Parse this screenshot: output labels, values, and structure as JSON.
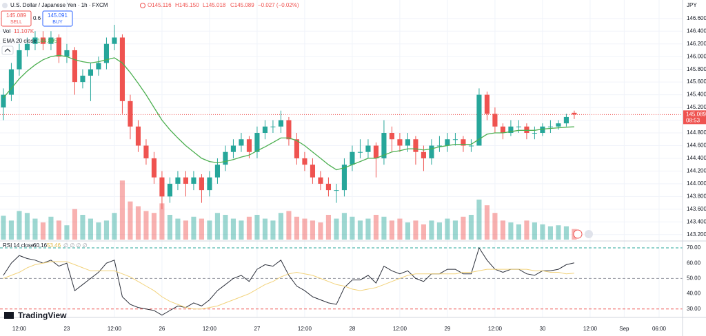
{
  "header": {
    "symbol": "U.S. Dollar / Japanese Yen · 1h · FXCM",
    "open": "O145.116",
    "high": "H145.150",
    "low": "L145.018",
    "close": "C145.089",
    "change": "−0.027 (−0.02%)",
    "sell_price": "145.089",
    "sell": "SELL",
    "spread": "0.6",
    "buy_price": "145.091",
    "buy": "BUY",
    "logo": "TradingView"
  },
  "chart_data": [
    {
      "type": "candlestick",
      "currency": "JPY",
      "up_color": "#26a69a",
      "down_color": "#ef5350",
      "xlim": [
        -0.43,
        85.66
      ],
      "xticks": [
        {
          "value": 2,
          "label": "12:00"
        },
        {
          "value": 8,
          "label": "23"
        },
        {
          "value": 14,
          "label": "12:00"
        },
        {
          "value": 20,
          "label": "26"
        },
        {
          "value": 26,
          "label": "12:00"
        },
        {
          "value": 32,
          "label": "27"
        },
        {
          "value": 38,
          "label": "12:00"
        },
        {
          "value": 44,
          "label": "28"
        },
        {
          "value": 50,
          "label": "12:00"
        },
        {
          "value": 56,
          "label": "29"
        },
        {
          "value": 62,
          "label": "12:00"
        },
        {
          "value": 68,
          "label": "30"
        },
        {
          "value": 74,
          "label": "12:00"
        },
        {
          "value": 78.3,
          "label": "Sep"
        },
        {
          "value": 82.7,
          "label": "06:00"
        }
      ],
      "ylim": [
        143.1,
        146.89
      ],
      "yticks": [
        {
          "value": 143.2,
          "label": "143.200"
        },
        {
          "value": 143.4,
          "label": "143.400"
        },
        {
          "value": 143.6,
          "label": "143.600"
        },
        {
          "value": 143.8,
          "label": "143.800"
        },
        {
          "value": 144.0,
          "label": "144.000"
        },
        {
          "value": 144.2,
          "label": "144.200"
        },
        {
          "value": 144.4,
          "label": "144.400"
        },
        {
          "value": 144.6,
          "label": "144.600"
        },
        {
          "value": 144.8,
          "label": "144.800"
        },
        {
          "value": 145.0,
          "label": "145.000"
        },
        {
          "value": 145.2,
          "label": "145.200"
        },
        {
          "value": 145.4,
          "label": "145.400"
        },
        {
          "value": 145.6,
          "label": "145.600"
        },
        {
          "value": 145.8,
          "label": "145.800"
        },
        {
          "value": 146.0,
          "label": "146.000"
        },
        {
          "value": 146.2,
          "label": "146.200"
        },
        {
          "value": 146.4,
          "label": "146.400"
        },
        {
          "value": 146.6,
          "label": "146.600"
        }
      ],
      "grid": true,
      "last_price": {
        "value": 145.089,
        "label": "145.089"
      },
      "countdown": "08:53",
      "ohlc": [
        [
          145.2,
          145.5,
          145.0,
          145.4
        ],
        [
          145.4,
          145.9,
          145.3,
          145.8
        ],
        [
          145.8,
          146.2,
          145.7,
          146.1
        ],
        [
          146.1,
          146.3,
          146.0,
          146.2
        ],
        [
          146.2,
          146.4,
          146.1,
          146.3
        ],
        [
          146.3,
          146.4,
          146.1,
          146.2
        ],
        [
          146.2,
          146.4,
          146.1,
          146.3
        ],
        [
          146.3,
          146.35,
          145.9,
          146.0
        ],
        [
          146.0,
          146.2,
          145.9,
          146.1
        ],
        [
          146.1,
          146.15,
          145.4,
          145.6
        ],
        [
          145.6,
          145.8,
          145.5,
          145.7
        ],
        [
          145.7,
          145.9,
          145.3,
          145.8
        ],
        [
          145.8,
          146.0,
          145.7,
          145.9
        ],
        [
          145.9,
          146.3,
          145.8,
          146.2
        ],
        [
          146.2,
          146.5,
          146.1,
          146.3
        ],
        [
          146.3,
          146.35,
          145.1,
          145.3
        ],
        [
          145.3,
          145.4,
          144.7,
          144.9
        ],
        [
          144.9,
          145.0,
          144.5,
          144.6
        ],
        [
          144.6,
          144.7,
          144.3,
          144.4
        ],
        [
          144.4,
          144.5,
          144.0,
          144.1
        ],
        [
          144.1,
          144.2,
          143.6,
          143.8
        ],
        [
          143.8,
          144.1,
          143.7,
          144.0
        ],
        [
          144.0,
          144.2,
          143.9,
          144.1
        ],
        [
          144.1,
          144.2,
          143.8,
          144.0
        ],
        [
          144.0,
          144.2,
          143.9,
          144.1
        ],
        [
          144.1,
          144.15,
          143.7,
          143.9
        ],
        [
          143.9,
          144.2,
          143.8,
          144.1
        ],
        [
          144.1,
          144.4,
          144.0,
          144.3
        ],
        [
          144.3,
          144.6,
          144.2,
          144.5
        ],
        [
          144.5,
          144.7,
          144.4,
          144.6
        ],
        [
          144.6,
          144.8,
          144.5,
          144.7
        ],
        [
          144.7,
          144.75,
          144.4,
          144.5
        ],
        [
          144.5,
          144.9,
          144.4,
          144.8
        ],
        [
          144.8,
          145.0,
          144.7,
          144.9
        ],
        [
          144.9,
          145.0,
          144.8,
          144.9
        ],
        [
          144.9,
          145.15,
          144.8,
          145.0
        ],
        [
          145.0,
          145.05,
          144.6,
          144.7
        ],
        [
          144.7,
          144.8,
          144.3,
          144.4
        ],
        [
          144.4,
          144.5,
          144.2,
          144.3
        ],
        [
          144.3,
          144.4,
          144.0,
          144.1
        ],
        [
          144.1,
          144.2,
          143.9,
          144.0
        ],
        [
          144.0,
          144.1,
          143.8,
          143.9
        ],
        [
          143.9,
          144.0,
          143.7,
          143.9
        ],
        [
          143.9,
          144.4,
          143.8,
          144.3
        ],
        [
          144.3,
          144.6,
          144.2,
          144.5
        ],
        [
          144.5,
          144.7,
          144.4,
          144.5
        ],
        [
          144.5,
          144.7,
          144.4,
          144.6
        ],
        [
          144.6,
          144.65,
          144.1,
          144.4
        ],
        [
          144.4,
          145.0,
          144.3,
          144.8
        ],
        [
          144.8,
          144.9,
          144.5,
          144.7
        ],
        [
          144.7,
          144.8,
          144.5,
          144.6
        ],
        [
          144.6,
          144.8,
          144.5,
          144.7
        ],
        [
          144.7,
          144.75,
          144.3,
          144.5
        ],
        [
          144.5,
          144.6,
          144.2,
          144.4
        ],
        [
          144.4,
          144.7,
          144.3,
          144.6
        ],
        [
          144.6,
          144.75,
          144.5,
          144.6
        ],
        [
          144.6,
          144.8,
          144.5,
          144.7
        ],
        [
          144.7,
          144.8,
          144.6,
          144.7
        ],
        [
          144.7,
          144.75,
          144.5,
          144.6
        ],
        [
          144.6,
          144.7,
          144.5,
          144.6
        ],
        [
          144.6,
          145.5,
          144.6,
          145.4
        ],
        [
          145.4,
          145.45,
          145.0,
          145.1
        ],
        [
          145.1,
          145.2,
          144.8,
          144.9
        ],
        [
          144.9,
          144.95,
          144.7,
          144.8
        ],
        [
          144.8,
          145.0,
          144.75,
          144.9
        ],
        [
          144.9,
          145.0,
          144.8,
          144.9
        ],
        [
          144.9,
          144.95,
          144.7,
          144.8
        ],
        [
          144.8,
          144.9,
          144.7,
          144.8
        ],
        [
          144.8,
          144.95,
          144.75,
          144.9
        ],
        [
          144.9,
          145.0,
          144.8,
          144.9
        ],
        [
          144.9,
          145.0,
          144.85,
          144.95
        ],
        [
          144.95,
          145.1,
          144.9,
          145.05
        ],
        [
          145.116,
          145.15,
          145.018,
          145.089
        ]
      ],
      "volume": {
        "name": "Vol",
        "last_label": "11.107K",
        "vlim": [
          0,
          65
        ],
        "values": [
          25,
          20,
          30,
          28,
          22,
          18,
          24,
          20,
          15,
          32,
          26,
          22,
          18,
          20,
          28,
          62,
          40,
          35,
          30,
          28,
          38,
          26,
          22,
          20,
          24,
          22,
          20,
          28,
          26,
          22,
          20,
          24,
          26,
          22,
          20,
          28,
          30,
          24,
          22,
          20,
          18,
          26,
          22,
          28,
          24,
          20,
          22,
          26,
          24,
          20,
          22,
          18,
          20,
          16,
          20,
          18,
          22,
          20,
          24,
          26,
          42,
          36,
          28,
          20,
          18,
          16,
          20,
          18,
          16,
          14,
          15,
          14,
          11.107
        ]
      },
      "series": [
        {
          "name": "EMA 20 close",
          "color": "#4caf50",
          "values": [
            145.35,
            145.5,
            145.65,
            145.77,
            145.87,
            145.95,
            146.0,
            146.02,
            146.0,
            145.95,
            145.92,
            145.9,
            145.92,
            145.95,
            145.98,
            145.9,
            145.75,
            145.58,
            145.4,
            145.2,
            145.0,
            144.85,
            144.72,
            144.6,
            144.5,
            144.4,
            144.35,
            144.33,
            144.35,
            144.38,
            144.42,
            144.45,
            144.52,
            144.58,
            144.65,
            144.72,
            144.72,
            144.68,
            144.6,
            144.5,
            144.4,
            144.3,
            144.22,
            144.25,
            144.3,
            144.35,
            144.4,
            144.4,
            144.45,
            144.5,
            144.52,
            144.55,
            144.55,
            144.53,
            144.55,
            144.58,
            144.6,
            144.62,
            144.62,
            144.62,
            144.7,
            144.78,
            144.8,
            144.8,
            144.82,
            144.84,
            144.84,
            144.84,
            144.86,
            144.87,
            144.88,
            144.89,
            144.895
          ]
        }
      ]
    },
    {
      "type": "line",
      "name": "RSI 14 close",
      "legend_extra": "∅ ∅ ∅ ∅",
      "ylim": [
        24.5,
        74.5
      ],
      "yticks": [
        {
          "value": 30,
          "label": "30.00"
        },
        {
          "value": 40,
          "label": "40.00"
        },
        {
          "value": 50,
          "label": "50.00"
        },
        {
          "value": 60,
          "label": "60.00"
        },
        {
          "value": 70,
          "label": "70.00"
        }
      ],
      "levels": [
        {
          "value": 70,
          "color": "#26a69a"
        },
        {
          "value": 50,
          "color": "#9598a1"
        },
        {
          "value": 30,
          "color": "#ef5350"
        }
      ],
      "series": [
        {
          "color": "#2a2e39",
          "values": [
            52,
            60,
            65,
            63,
            62,
            60,
            62,
            58,
            60,
            42,
            46,
            50,
            54,
            60,
            62,
            38,
            33,
            31,
            30,
            29,
            26,
            29,
            32,
            31,
            34,
            32,
            36,
            42,
            46,
            50,
            52,
            48,
            56,
            59,
            58,
            62,
            52,
            45,
            42,
            38,
            36,
            34,
            33,
            44,
            49,
            49,
            52,
            47,
            58,
            55,
            53,
            55,
            50,
            48,
            53,
            53,
            56,
            56,
            53,
            53,
            70,
            62,
            56,
            54,
            56,
            56,
            53,
            52,
            55,
            55,
            56,
            59,
            60.16
          ]
        },
        {
          "color": "#f2d27a",
          "values": [
            50,
            52,
            54,
            57,
            59,
            60,
            61,
            61,
            61,
            59,
            57,
            55,
            55,
            55,
            55,
            53,
            51,
            48,
            45,
            42,
            38,
            35,
            33,
            31,
            30,
            30,
            31,
            32,
            34,
            36,
            38,
            40,
            43,
            46,
            48,
            51,
            53,
            54,
            53,
            52,
            50,
            48,
            46,
            45,
            43,
            42,
            43,
            44,
            46,
            48,
            50,
            52,
            53,
            53,
            53,
            53,
            53,
            53,
            54,
            54,
            55,
            56,
            56,
            56,
            56,
            56,
            56,
            55,
            55,
            54,
            54,
            53,
            53.46
          ]
        }
      ]
    }
  ]
}
